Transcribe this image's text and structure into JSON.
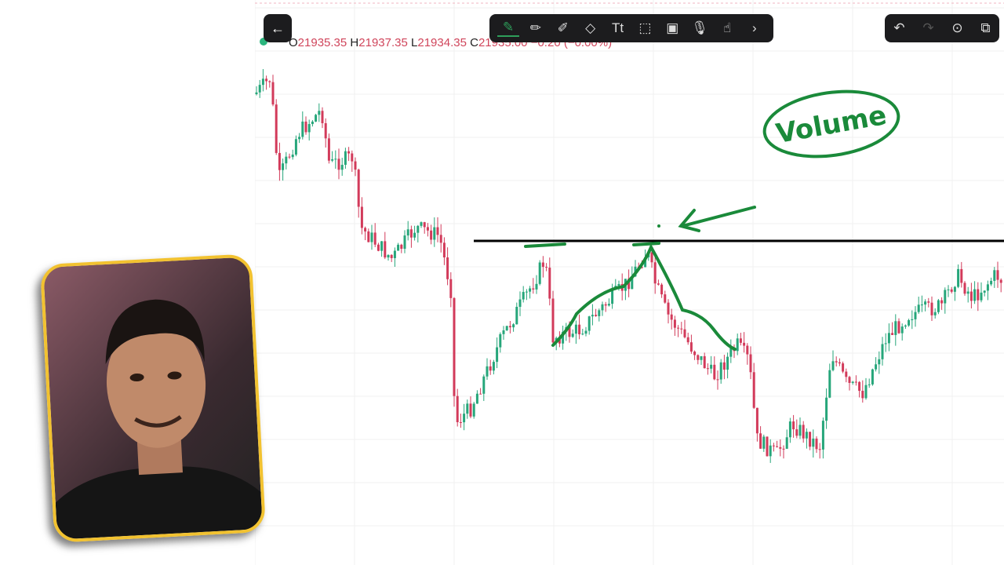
{
  "toolbar": {
    "back_icon": "arrow-left-icon",
    "tools": [
      "pen-icon",
      "pencil-icon",
      "highlighter-icon",
      "eraser-icon",
      "text-icon",
      "select-icon",
      "image-icon",
      "mic-icon",
      "hand-icon",
      "chevron-right-icon"
    ],
    "active_tool": "pen-icon"
  },
  "actions": [
    "undo-icon",
    "redo-icon",
    "more-icon",
    "copy-icon"
  ],
  "ohlc": {
    "o_label": "O",
    "o": "21935.35",
    "h_label": "H",
    "h": "21937.35",
    "l_label": "L",
    "l": "21934.35",
    "c_label": "C",
    "c": "21935.00",
    "change": "−0.20 (−0.00%)"
  },
  "annotation": {
    "text": "Volume"
  },
  "colors": {
    "up": "#26a67a",
    "down": "#d23a5a",
    "ink": "#1a8a3a"
  }
}
